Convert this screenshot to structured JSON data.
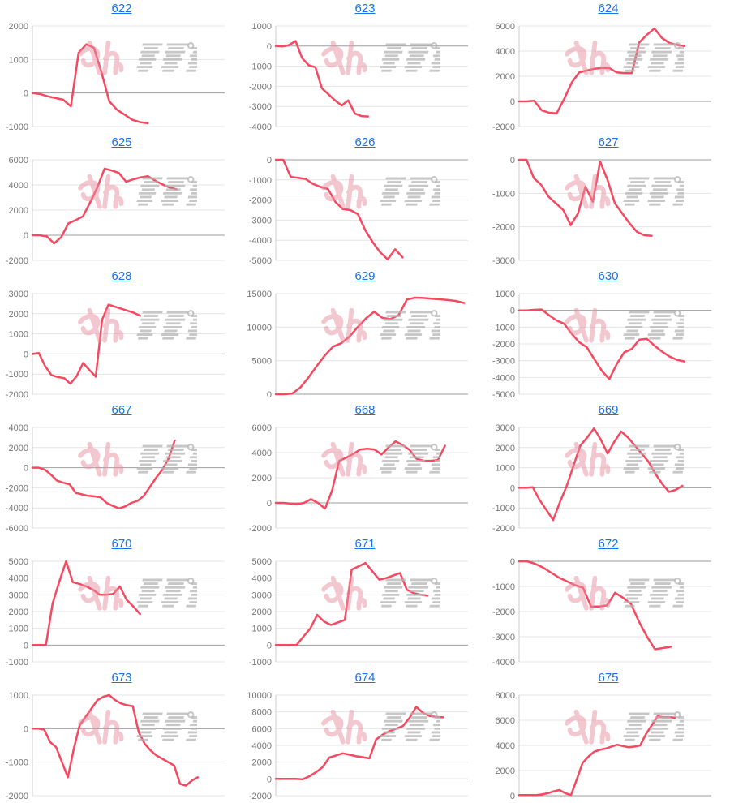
{
  "style": {
    "line_color": "#f64860",
    "grid_color": "#e4e4e4",
    "zero_line_color": "#9e9e9e",
    "axis_color": "#cccccc",
    "tick_label_color": "#757575",
    "title_link_color": "#1a73e8",
    "watermark_pink": "#e891a1",
    "watermark_gray": "#b5b5b5"
  },
  "watermark": {
    "name": "minkabu-style-watermark",
    "description": "pink kana + gray striped glyph logo repeated on every chart"
  },
  "chart_data": [
    {
      "id": "622",
      "type": "line",
      "title": "622",
      "yticks": [
        2000,
        1000,
        0,
        -1000
      ],
      "ylim": [
        -1000,
        2000
      ],
      "span": 0.6,
      "values": [
        0,
        -30,
        -100,
        -150,
        -200,
        -400,
        1200,
        1450,
        1350,
        600,
        -250,
        -500,
        -650,
        -800,
        -870,
        -900
      ]
    },
    {
      "id": "623",
      "type": "line",
      "title": "623",
      "yticks": [
        1000,
        0,
        -1000,
        -2000,
        -3000,
        -4000
      ],
      "ylim": [
        -4000,
        1000
      ],
      "span": 0.48,
      "values": [
        0,
        -20,
        50,
        250,
        -600,
        -950,
        -1050,
        -2100,
        -2400,
        -2700,
        -2950,
        -2700,
        -3350,
        -3480,
        -3500
      ]
    },
    {
      "id": "624",
      "type": "line",
      "title": "624",
      "yticks": [
        6000,
        4000,
        2000,
        0,
        -2000
      ],
      "ylim": [
        -2000,
        6000
      ],
      "span": 0.86,
      "values": [
        0,
        0,
        50,
        -700,
        -900,
        -950,
        200,
        1500,
        2300,
        2450,
        2600,
        2650,
        2650,
        2300,
        2250,
        2250,
        4700,
        5300,
        5800,
        5050,
        4650,
        4500,
        4400
      ]
    },
    {
      "id": "625",
      "type": "line",
      "title": "625",
      "yticks": [
        6000,
        4000,
        2000,
        0,
        -2000
      ],
      "ylim": [
        -2000,
        6000
      ],
      "span": 0.75,
      "values": [
        0,
        0,
        -100,
        -650,
        -150,
        950,
        1200,
        1500,
        2600,
        3800,
        5300,
        5150,
        4950,
        4250,
        4450,
        4600,
        4700,
        4350,
        4050,
        3800,
        3650
      ]
    },
    {
      "id": "626",
      "type": "line",
      "title": "626",
      "yticks": [
        0,
        -1000,
        -2000,
        -3000,
        -4000,
        -5000
      ],
      "ylim": [
        -5000,
        0
      ],
      "span": 0.66,
      "values": [
        0,
        0,
        -850,
        -900,
        -950,
        -1200,
        -1350,
        -1450,
        -2100,
        -2450,
        -2500,
        -2700,
        -3500,
        -4100,
        -4600,
        -4950,
        -4450,
        -4850
      ]
    },
    {
      "id": "627",
      "type": "line",
      "title": "627",
      "yticks": [
        0,
        -1000,
        -2000,
        -3000
      ],
      "ylim": [
        -3000,
        0
      ],
      "span": 0.69,
      "values": [
        0,
        0,
        -550,
        -750,
        -1100,
        -1300,
        -1500,
        -1950,
        -1600,
        -800,
        -1250,
        -50,
        -600,
        -1300,
        -1600,
        -1900,
        -2150,
        -2250,
        -2270
      ]
    },
    {
      "id": "628",
      "type": "line",
      "title": "628",
      "yticks": [
        3000,
        2000,
        1000,
        0,
        -1000,
        -2000
      ],
      "ylim": [
        -2000,
        3000
      ],
      "span": 0.56,
      "values": [
        0,
        50,
        -600,
        -1050,
        -1150,
        -1200,
        -1480,
        -1100,
        -450,
        -800,
        -1130,
        1700,
        2450,
        2350,
        2250,
        2150,
        2050,
        1900
      ]
    },
    {
      "id": "629",
      "type": "line",
      "title": "629",
      "yticks": [
        15000,
        10000,
        5000,
        0
      ],
      "ylim": [
        0,
        15000
      ],
      "span": 0.98,
      "values": [
        0,
        0,
        100,
        1000,
        2500,
        4200,
        5800,
        7100,
        7600,
        8600,
        10000,
        11300,
        12300,
        11400,
        11200,
        11800,
        14100,
        14400,
        14350,
        14250,
        14150,
        14050,
        13900,
        13600
      ]
    },
    {
      "id": "630",
      "type": "line",
      "title": "630",
      "yticks": [
        1000,
        0,
        -1000,
        -2000,
        -3000,
        -4000,
        -5000
      ],
      "ylim": [
        -5000,
        1000
      ],
      "span": 0.86,
      "values": [
        0,
        0,
        30,
        50,
        -300,
        -600,
        -800,
        -1400,
        -1900,
        -2200,
        -2900,
        -3600,
        -4100,
        -3200,
        -2500,
        -2300,
        -1750,
        -1700,
        -2100,
        -2450,
        -2750,
        -2950,
        -3050
      ]
    },
    {
      "id": "667",
      "type": "line",
      "title": "667",
      "yticks": [
        4000,
        2000,
        0,
        -2000,
        -4000,
        -6000
      ],
      "ylim": [
        -6000,
        4000
      ],
      "span": 0.74,
      "values": [
        0,
        0,
        -200,
        -700,
        -1300,
        -1500,
        -1650,
        -2500,
        -2650,
        -2800,
        -2850,
        -2950,
        -3500,
        -3800,
        -4050,
        -3850,
        -3500,
        -3300,
        -2800,
        -1900,
        -1000,
        -200,
        900,
        2700
      ]
    },
    {
      "id": "668",
      "type": "line",
      "title": "668",
      "yticks": [
        6000,
        4000,
        2000,
        0,
        -2000
      ],
      "ylim": [
        -2000,
        6000
      ],
      "span": 0.88,
      "values": [
        0,
        0,
        -50,
        -100,
        0,
        300,
        0,
        -450,
        1000,
        3350,
        3600,
        3900,
        4250,
        4300,
        4250,
        3850,
        4400,
        4900,
        4600,
        4200,
        3500,
        3350,
        3350,
        3400,
        4550
      ]
    },
    {
      "id": "669",
      "type": "line",
      "title": "669",
      "yticks": [
        3000,
        2000,
        1000,
        0,
        -1000,
        -2000
      ],
      "ylim": [
        -2000,
        3000
      ],
      "span": 0.85,
      "values": [
        0,
        0,
        30,
        -600,
        -1100,
        -1600,
        -700,
        100,
        1100,
        2100,
        2500,
        2950,
        2400,
        1700,
        2300,
        2800,
        2500,
        2100,
        1700,
        1300,
        700,
        200,
        -200,
        -100,
        100
      ]
    },
    {
      "id": "670",
      "type": "line",
      "title": "670",
      "yticks": [
        5000,
        4000,
        3000,
        2000,
        1000,
        0,
        -1000
      ],
      "ylim": [
        -1000,
        5000
      ],
      "span": 0.56,
      "values": [
        0,
        0,
        0,
        2500,
        3800,
        5000,
        3750,
        3650,
        3500,
        3300,
        3000,
        3000,
        3050,
        3500,
        2700,
        2300,
        1850
      ]
    },
    {
      "id": "671",
      "type": "line",
      "title": "671",
      "yticks": [
        5000,
        4000,
        3000,
        2000,
        1000,
        0,
        -1000
      ],
      "ylim": [
        -1000,
        5000
      ],
      "span": 0.79,
      "values": [
        0,
        0,
        0,
        0,
        500,
        1000,
        1800,
        1400,
        1200,
        1350,
        1500,
        4500,
        4700,
        4900,
        4400,
        3900,
        4000,
        4150,
        4300,
        3300,
        3100,
        3000,
        2950
      ]
    },
    {
      "id": "672",
      "type": "line",
      "title": "672",
      "yticks": [
        0,
        -1000,
        -2000,
        -3000,
        -4000
      ],
      "ylim": [
        -4000,
        0
      ],
      "span": 0.79,
      "values": [
        0,
        0,
        -100,
        -250,
        -450,
        -650,
        -800,
        -950,
        -1050,
        -1800,
        -1800,
        -1750,
        -1250,
        -1450,
        -1700,
        -2400,
        -3000,
        -3500,
        -3450,
        -3400
      ]
    },
    {
      "id": "673",
      "type": "line",
      "title": "673",
      "yticks": [
        1000,
        0,
        -1000,
        -2000
      ],
      "ylim": [
        -2000,
        1000
      ],
      "span": 0.86,
      "values": [
        0,
        0,
        -30,
        -400,
        -550,
        -1000,
        -1450,
        -600,
        100,
        350,
        600,
        850,
        950,
        1000,
        850,
        750,
        700,
        670,
        -100,
        -450,
        -650,
        -800,
        -900,
        -1000,
        -1100,
        -1650,
        -1700,
        -1550,
        -1450
      ]
    },
    {
      "id": "674",
      "type": "line",
      "title": "674",
      "yticks": [
        10000,
        8000,
        6000,
        4000,
        2000,
        0,
        -2000
      ],
      "ylim": [
        -2000,
        10000
      ],
      "span": 0.87,
      "values": [
        0,
        0,
        0,
        0,
        -50,
        300,
        800,
        1400,
        2550,
        2800,
        3050,
        2900,
        2700,
        2600,
        2450,
        4700,
        5300,
        5700,
        6000,
        6300,
        7300,
        8600,
        7900,
        7500,
        7400,
        7350
      ]
    },
    {
      "id": "675",
      "type": "line",
      "title": "675",
      "yticks": [
        8000,
        6000,
        4000,
        2000,
        0
      ],
      "ylim": [
        0,
        8000
      ],
      "span": 0.81,
      "values": [
        50,
        50,
        50,
        50,
        100,
        200,
        350,
        450,
        200,
        50,
        1300,
        2600,
        3100,
        3500,
        3650,
        3750,
        3900,
        4050,
        3950,
        3850,
        3900,
        4000,
        4900,
        5600,
        6300,
        6250,
        6250,
        6200
      ]
    }
  ]
}
